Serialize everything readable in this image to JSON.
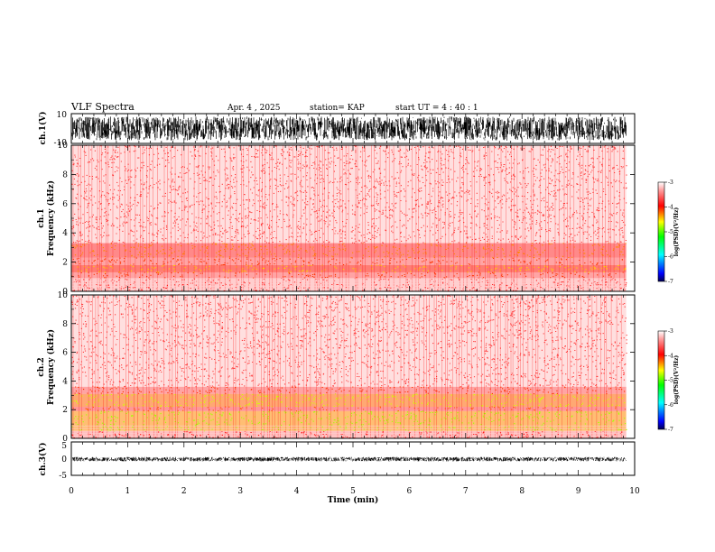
{
  "header": {
    "title": "VLF Spectra",
    "date": "Apr. 4 , 2025",
    "station": "station= KAP",
    "start": "start UT = 4 : 40 : 1"
  },
  "colors": {
    "colorbar": [
      "#000050",
      "#0000ff",
      "#0080ff",
      "#00ffff",
      "#00ff80",
      "#00ff00",
      "#80ff00",
      "#ffff00",
      "#ff8000",
      "#ff0000",
      "#ff5050",
      "#ffa0a0",
      "#ffffff"
    ],
    "trace": "#000000",
    "axis": "#000000"
  },
  "chart_data": [
    {
      "type": "line",
      "ylabel": "ch.1(V)",
      "ylim": [
        -10,
        10
      ],
      "yticks": [
        "10",
        "-10"
      ],
      "xlim": [
        0,
        9.85
      ],
      "description_series": "dense noise trace filling approximately -8 to 8 V",
      "amplitude_band": [
        -8,
        8
      ]
    },
    {
      "type": "heatmap",
      "ylabel": "ch.1 Frequency (kHz)",
      "ylim": [
        0,
        10
      ],
      "yticks": [
        "0",
        "2",
        "4",
        "6",
        "8",
        "10"
      ],
      "xlim": [
        0,
        9.85
      ],
      "bands_khz": [
        {
          "from": 0,
          "to": 0.9,
          "level": -3.3
        },
        {
          "from": 0.9,
          "to": 1.3,
          "level": -3.6
        },
        {
          "from": 1.3,
          "to": 1.8,
          "level": -4.0
        },
        {
          "from": 1.8,
          "to": 2.3,
          "level": -3.6
        },
        {
          "from": 2.3,
          "to": 3.3,
          "level": -3.8
        },
        {
          "from": 3.3,
          "to": 10,
          "level": -3.2
        }
      ],
      "colorbar": {
        "min": -7,
        "max": -3,
        "ticks": [
          "-3",
          "-4",
          "-5",
          "-6",
          "-7"
        ],
        "label": "log(PSD)(V²/Hz)"
      }
    },
    {
      "type": "heatmap",
      "ylabel": "ch.2 Frequency (kHz)",
      "ylim": [
        0,
        10
      ],
      "yticks": [
        "0",
        "2",
        "4",
        "6",
        "8",
        "10"
      ],
      "xlim": [
        0,
        9.85
      ],
      "bands_khz": [
        {
          "from": 0,
          "to": 0.5,
          "level": -3.4
        },
        {
          "from": 0.5,
          "to": 1.9,
          "level": -4.3
        },
        {
          "from": 1.9,
          "to": 2.2,
          "level": -3.7
        },
        {
          "from": 2.2,
          "to": 3.1,
          "level": -4.2
        },
        {
          "from": 3.1,
          "to": 3.6,
          "level": -3.6
        },
        {
          "from": 3.6,
          "to": 10,
          "level": -3.2
        }
      ],
      "colorbar": {
        "min": -7,
        "max": -3,
        "ticks": [
          "-3",
          "-4",
          "-5",
          "-6",
          "-7"
        ],
        "label": "log(PSD)(V²/Hz)"
      }
    },
    {
      "type": "line",
      "ylabel": "ch.3(V)",
      "ylim": [
        -5,
        5
      ],
      "yticks": [
        "5",
        "0",
        "-5"
      ],
      "xlim": [
        0,
        9.85
      ],
      "amplitude_band": [
        -0.8,
        0.5
      ]
    }
  ],
  "xaxis": {
    "label": "Time (min)",
    "range": [
      0,
      10
    ],
    "ticks": [
      "0",
      "1",
      "2",
      "3",
      "4",
      "5",
      "6",
      "7",
      "8",
      "9",
      "10"
    ]
  }
}
